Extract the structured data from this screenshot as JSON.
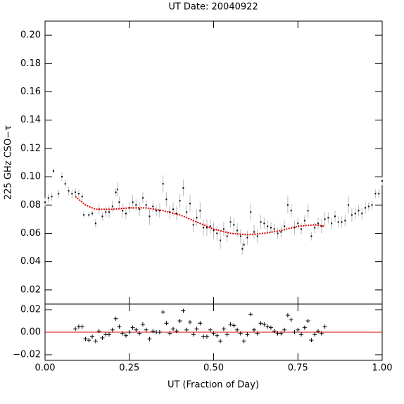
{
  "chart_data": [
    {
      "type": "scatter",
      "title": "UT Date: 20040922",
      "y_label": "225 GHz CSO−τ",
      "xlim": [
        0,
        1
      ],
      "ylim": [
        0.01,
        0.21
      ],
      "yticks": [
        0.02,
        0.04,
        0.06,
        0.08,
        {
          "value": 0.1,
          "label": "0.10"
        },
        0.12,
        0.14,
        0.16,
        0.18,
        {
          "value": 0.2,
          "label": "0.20"
        }
      ],
      "series": [
        {
          "type": "errorbar",
          "color": "#000000",
          "error_color": "#bbbbbb",
          "x": [
            0,
            0.01,
            0.02,
            0.025,
            0.04,
            0.05,
            0.06,
            0.07,
            0.08,
            0.09,
            0.1,
            0.11,
            0.115,
            0.13,
            0.14,
            0.15,
            0.16,
            0.17,
            0.18,
            0.19,
            0.2,
            0.21,
            0.215,
            0.22,
            0.23,
            0.24,
            0.25,
            0.26,
            0.27,
            0.28,
            0.29,
            0.3,
            0.31,
            0.32,
            0.33,
            0.34,
            0.35,
            0.36,
            0.37,
            0.38,
            0.39,
            0.4,
            0.41,
            0.42,
            0.43,
            0.44,
            0.45,
            0.46,
            0.47,
            0.48,
            0.49,
            0.5,
            0.51,
            0.52,
            0.53,
            0.54,
            0.55,
            0.56,
            0.57,
            0.58,
            0.585,
            0.59,
            0.6,
            0.61,
            0.62,
            0.63,
            0.64,
            0.65,
            0.66,
            0.67,
            0.68,
            0.69,
            0.7,
            0.71,
            0.72,
            0.73,
            0.74,
            0.75,
            0.76,
            0.77,
            0.78,
            0.79,
            0.8,
            0.81,
            0.82,
            0.83,
            0.84,
            0.85,
            0.86,
            0.87,
            0.88,
            0.89,
            0.9,
            0.91,
            0.92,
            0.93,
            0.94,
            0.95,
            0.96,
            0.97,
            0.98,
            0.99,
            1.0
          ],
          "values": [
            0.082,
            0.085,
            0.086,
            0.104,
            0.088,
            0.1,
            0.095,
            0.09,
            0.088,
            0.089,
            0.088,
            0.086,
            0.073,
            0.073,
            0.074,
            0.067,
            0.077,
            0.072,
            0.075,
            0.075,
            0.079,
            0.089,
            0.091,
            0.082,
            0.076,
            0.074,
            0.078,
            0.082,
            0.08,
            0.077,
            0.085,
            0.08,
            0.072,
            0.079,
            0.076,
            0.076,
            0.095,
            0.084,
            0.075,
            0.077,
            0.074,
            0.083,
            0.092,
            0.075,
            0.081,
            0.066,
            0.071,
            0.076,
            0.064,
            0.064,
            0.065,
            0.062,
            0.06,
            0.055,
            0.063,
            0.058,
            0.068,
            0.066,
            0.062,
            0.058,
            0.049,
            0.052,
            0.057,
            0.075,
            0.061,
            0.058,
            0.068,
            0.067,
            0.065,
            0.064,
            0.063,
            0.06,
            0.061,
            0.065,
            0.08,
            0.076,
            0.064,
            0.067,
            0.063,
            0.069,
            0.076,
            0.058,
            0.064,
            0.067,
            0.065,
            0.07,
            0.071,
            0.067,
            0.072,
            0.068,
            0.068,
            0.069,
            0.08,
            0.073,
            0.074,
            0.076,
            0.074,
            0.078,
            0.079,
            0.08,
            0.088,
            0.088,
            0.097
          ],
          "errors": [
            0.003,
            0.003,
            0.003,
            0.002,
            0.003,
            0.003,
            0.003,
            0.003,
            0.003,
            0.003,
            0.003,
            0.003,
            0.002,
            0.002,
            0.002,
            0.003,
            0.004,
            0.003,
            0.004,
            0.004,
            0.004,
            0.003,
            0.005,
            0.004,
            0.005,
            0.004,
            0.004,
            0.005,
            0.004,
            0.005,
            0.004,
            0.004,
            0.006,
            0.004,
            0.004,
            0.005,
            0.006,
            0.005,
            0.005,
            0.005,
            0.005,
            0.005,
            0.006,
            0.005,
            0.006,
            0.005,
            0.006,
            0.006,
            0.006,
            0.006,
            0.005,
            0.006,
            0.005,
            0.006,
            0.005,
            0.004,
            0.004,
            0.005,
            0.005,
            0.005,
            0.004,
            0.004,
            0.005,
            0.006,
            0.005,
            0.005,
            0.005,
            0.004,
            0.004,
            0.004,
            0.004,
            0.004,
            0.004,
            0.004,
            0.006,
            0.005,
            0.005,
            0.004,
            0.004,
            0.004,
            0.005,
            0.003,
            0.004,
            0.004,
            0.005,
            0.005,
            0.004,
            0.004,
            0.004,
            0.004,
            0.004,
            0.004,
            0.006,
            0.005,
            0.004,
            0.004,
            0.004,
            0.004,
            0.003,
            0.003,
            0.003,
            0.003,
            0.003
          ]
        },
        {
          "type": "line",
          "color": "#e00000",
          "x": [
            0.09,
            0.12,
            0.15,
            0.2,
            0.25,
            0.3,
            0.35,
            0.4,
            0.45,
            0.5,
            0.55,
            0.6,
            0.65,
            0.7,
            0.75,
            0.8,
            0.83
          ],
          "values": [
            0.086,
            0.08,
            0.077,
            0.077,
            0.078,
            0.078,
            0.076,
            0.073,
            0.068,
            0.063,
            0.06,
            0.059,
            0.06,
            0.062,
            0.065,
            0.066,
            0.065
          ]
        }
      ]
    },
    {
      "type": "scatter",
      "x_label": "UT (Fraction of Day)",
      "xlim": [
        0,
        1
      ],
      "ylim": [
        -0.025,
        0.025
      ],
      "xticks": [
        {
          "value": 0,
          "label": "0.00"
        },
        0.25,
        {
          "value": 0.5,
          "label": "0.50"
        },
        0.75,
        {
          "value": 1,
          "label": "1.00"
        }
      ],
      "yticks": [
        {
          "value": -0.02,
          "label": "−0.02"
        },
        {
          "value": 0,
          "label": "0.00"
        },
        0.02
      ],
      "reference_line": {
        "value": 0,
        "color": "#e00000"
      },
      "series": [
        {
          "type": "plus",
          "color": "#000000",
          "x": [
            0.09,
            0.1,
            0.11,
            0.12,
            0.13,
            0.14,
            0.15,
            0.16,
            0.17,
            0.18,
            0.19,
            0.2,
            0.21,
            0.22,
            0.23,
            0.24,
            0.25,
            0.26,
            0.27,
            0.28,
            0.29,
            0.3,
            0.31,
            0.32,
            0.33,
            0.34,
            0.35,
            0.36,
            0.37,
            0.38,
            0.39,
            0.4,
            0.41,
            0.42,
            0.43,
            0.44,
            0.45,
            0.46,
            0.47,
            0.48,
            0.49,
            0.5,
            0.51,
            0.52,
            0.53,
            0.54,
            0.55,
            0.56,
            0.57,
            0.58,
            0.59,
            0.6,
            0.61,
            0.62,
            0.63,
            0.64,
            0.65,
            0.66,
            0.67,
            0.68,
            0.69,
            0.7,
            0.71,
            0.72,
            0.73,
            0.74,
            0.75,
            0.76,
            0.77,
            0.78,
            0.79,
            0.8,
            0.81,
            0.82,
            0.83
          ],
          "values": [
            0.003,
            0.005,
            0.005,
            -0.006,
            -0.007,
            -0.004,
            -0.008,
            0.001,
            -0.005,
            -0.002,
            -0.002,
            0.002,
            0.012,
            0.005,
            -0.001,
            -0.003,
            0,
            0.004,
            0.002,
            -0.001,
            0.007,
            0.002,
            -0.006,
            0.001,
            0,
            0,
            0.018,
            0.008,
            -0.001,
            0.003,
            0.001,
            0.01,
            0.019,
            0.002,
            0.009,
            -0.002,
            0.003,
            0.008,
            -0.004,
            -0.004,
            0.002,
            -0.001,
            -0.003,
            -0.008,
            0.003,
            -0.002,
            0.007,
            0.006,
            0.002,
            -0.001,
            -0.008,
            -0.002,
            0.016,
            0.002,
            -0.001,
            0.008,
            0.007,
            0.005,
            0.004,
            0.001,
            -0.001,
            -0.001,
            0.002,
            0.015,
            0.011,
            0,
            0.002,
            -0.002,
            0.004,
            0.01,
            -0.007,
            -0.002,
            0.001,
            -0.001,
            0.005
          ]
        }
      ]
    }
  ]
}
